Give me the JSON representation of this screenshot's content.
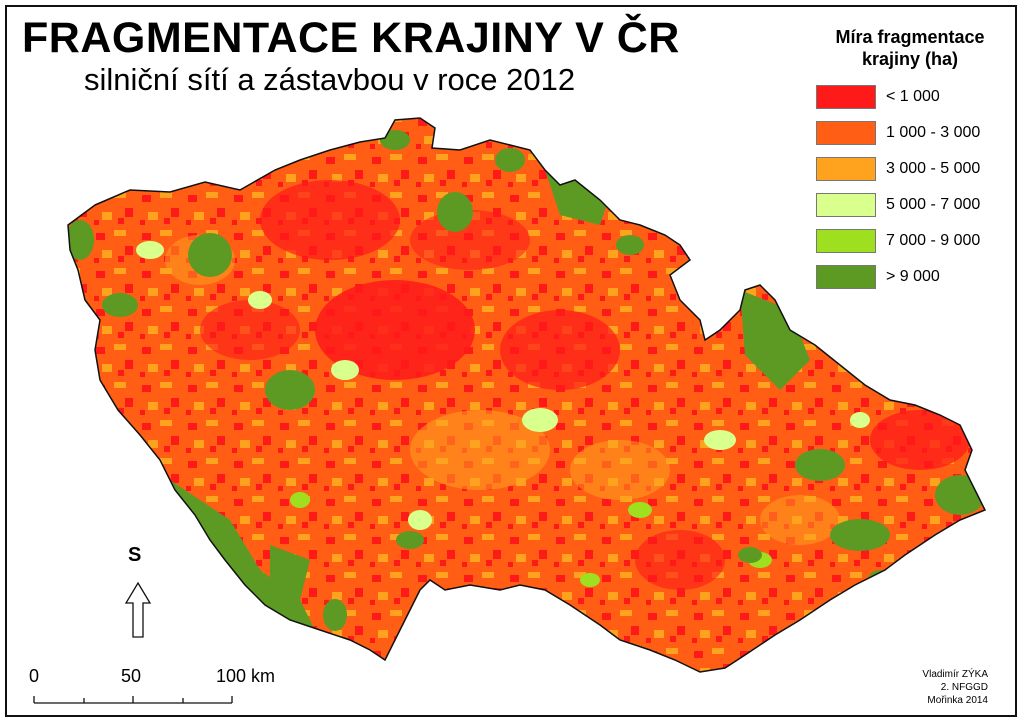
{
  "map": {
    "title": "FRAGMENTACE KRAJINY V ČR",
    "subtitle": "silniční sítí a zástavbou v roce 2012"
  },
  "legend": {
    "title_line1": "Míra fragmentace",
    "title_line2": "krajiny (ha)",
    "items": [
      {
        "label": "< 1 000",
        "color": "#ff1a1a"
      },
      {
        "label": "1 000 - 3 000",
        "color": "#ff5e14"
      },
      {
        "label": "3 000 - 5 000",
        "color": "#ffa31f"
      },
      {
        "label": "5 000 - 7 000",
        "color": "#d9ff8c"
      },
      {
        "label": "7 000 - 9 000",
        "color": "#9ee01f"
      },
      {
        "label": "> 9 000",
        "color": "#5c9a24"
      }
    ]
  },
  "north_arrow": {
    "label": "S"
  },
  "scale_bar": {
    "labels": [
      "0",
      "50",
      "100 km"
    ]
  },
  "credits": {
    "line1": "Vladimír ZÝKA",
    "line2": "2. NFGGD",
    "line3": "Mořinka 2014"
  }
}
